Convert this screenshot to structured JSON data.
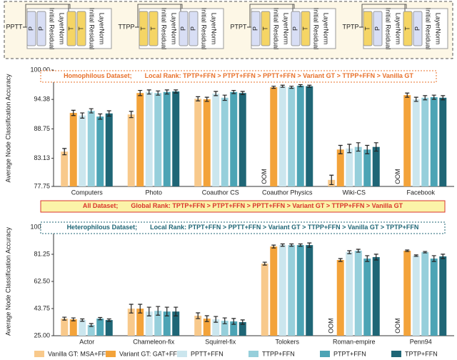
{
  "diagram": {
    "modules": [
      "Initial Residual",
      "LayerNorm"
    ],
    "blocks": [
      {
        "label": "PPTT",
        "units": [
          "P",
          "P",
          "T",
          "T"
        ]
      },
      {
        "label": "TTPP",
        "units": [
          "T",
          "T",
          "P",
          "P"
        ]
      },
      {
        "label": "PTPT",
        "units": [
          "P",
          "T",
          "P",
          "T"
        ]
      },
      {
        "label": "TPTP",
        "units": [
          "T",
          "P",
          "T",
          "P"
        ]
      }
    ]
  },
  "global_banner": {
    "dataset": "All Dataset;",
    "rank": "Global Rank: TPTP+FFN > PTPT+FFN > PPTT+FFN > Variant GT > TTPP+FFN > Vanilla GT",
    "color": "#d9342b"
  },
  "chart_data": [
    {
      "type": "bar",
      "y_label": "Average Node Classification Accuracy",
      "oom_label": "OOM",
      "banner": {
        "dataset": "Homophilous Dataset;",
        "rank": "Local Rank: TPTP+FFN > PTPT+FFN > PPTT+FFN > Variant GT > TTPP+FFN > Vanilla GT",
        "color": "#e8702a"
      },
      "categories": [
        "Computers",
        "Photo",
        "Coauthor CS",
        "Coauthor Physics",
        "Wiki-CS",
        "Facebook"
      ],
      "ylim": [
        77.75,
        100
      ],
      "yticks": [
        77.75,
        83.13,
        88.75,
        94.38,
        {
          "value": 100,
          "label": "100.00"
        }
      ],
      "grid": false,
      "series": [
        {
          "name": "Vanilla GT: MSA+FFN",
          "color": "#f8c98b",
          "values": [
            84.4,
            91.5,
            94.5,
            null,
            79.0,
            null
          ],
          "errors": [
            0.6,
            0.6,
            0.4,
            null,
            0.9,
            null
          ]
        },
        {
          "name": "Variant GT: GAT+FFN",
          "color": "#f3a33a",
          "values": [
            91.8,
            95.6,
            94.4,
            96.7,
            84.8,
            95.2
          ],
          "errors": [
            0.5,
            0.5,
            0.4,
            0.2,
            0.8,
            0.4
          ]
        },
        {
          "name": "PPTT+FFN",
          "color": "#cbe6ee",
          "values": [
            91.3,
            95.8,
            95.5,
            96.9,
            85.0,
            94.4
          ],
          "errors": [
            0.5,
            0.4,
            0.4,
            0.2,
            0.8,
            0.4
          ]
        },
        {
          "name": "TTPP+FFN",
          "color": "#96cfdb",
          "values": [
            92.2,
            95.6,
            94.7,
            96.7,
            85.3,
            94.7
          ],
          "errors": [
            0.4,
            0.4,
            0.5,
            0.2,
            0.8,
            0.4
          ]
        },
        {
          "name": "PTPT+FFN",
          "color": "#4ca4b5",
          "values": [
            91.1,
            95.8,
            95.8,
            97.0,
            84.8,
            94.8
          ],
          "errors": [
            0.5,
            0.4,
            0.3,
            0.2,
            0.8,
            0.4
          ]
        },
        {
          "name": "TPTP+FFN",
          "color": "#1f6676",
          "values": [
            91.7,
            95.9,
            95.6,
            96.9,
            85.3,
            94.7
          ],
          "errors": [
            0.5,
            0.3,
            0.3,
            0.2,
            0.8,
            0.4
          ]
        }
      ]
    },
    {
      "type": "bar",
      "y_label": "Average Node Classification Accuracy",
      "oom_label": "OOM",
      "banner": {
        "dataset": "Heterophilous Dataset;",
        "rank": "Local Rank: PTPT+FFN > PPTT+FFN > Variant GT > TTPP+FFN > Vanilla GT > TPTP+FFN",
        "color": "#1f6676"
      },
      "categories": [
        "Actor",
        "Chameleon-fix",
        "Squirrel-fix",
        "Tolokers",
        "Roman-empire",
        "Penn94"
      ],
      "ylim": [
        25,
        100
      ],
      "yticks": [
        {
          "value": 25,
          "label": "25.00"
        },
        43.75,
        {
          "value": 62.5,
          "label": "62.50"
        },
        81.25,
        {
          "value": 100,
          "label": "100.00"
        }
      ],
      "grid": false,
      "series": [
        {
          "color": "#f8c98b",
          "values": [
            36.8,
            43.7,
            38.8,
            74.8,
            null,
            null
          ],
          "errors": [
            1.0,
            3.0,
            2.0,
            1.0,
            null,
            null
          ]
        },
        {
          "color": "#f3a33a",
          "values": [
            36.3,
            43.7,
            36.8,
            86.6,
            77.3,
            83.7
          ],
          "errors": [
            1.0,
            3.0,
            2.0,
            1.0,
            1.0,
            0.5
          ]
        },
        {
          "color": "#cbe6ee",
          "values": [
            35.8,
            41.7,
            36.3,
            87.6,
            82.7,
            80.3
          ],
          "errors": [
            0.8,
            3.0,
            2.0,
            0.8,
            1.0,
            0.5
          ]
        },
        {
          "color": "#96cfdb",
          "values": [
            32.4,
            42.2,
            35.3,
            87.6,
            83.7,
            82.7
          ],
          "errors": [
            1.0,
            3.0,
            2.0,
            0.8,
            1.0,
            0.5
          ]
        },
        {
          "color": "#4ca4b5",
          "values": [
            36.8,
            41.7,
            34.9,
            87.6,
            78.3,
            78.3
          ],
          "errors": [
            0.8,
            3.0,
            2.0,
            0.8,
            2.0,
            2.0
          ]
        },
        {
          "color": "#1f6676",
          "values": [
            35.8,
            41.7,
            34.4,
            87.6,
            79.3,
            79.8
          ],
          "errors": [
            0.8,
            3.0,
            1.5,
            1.5,
            2.0,
            1.5
          ]
        }
      ]
    }
  ]
}
